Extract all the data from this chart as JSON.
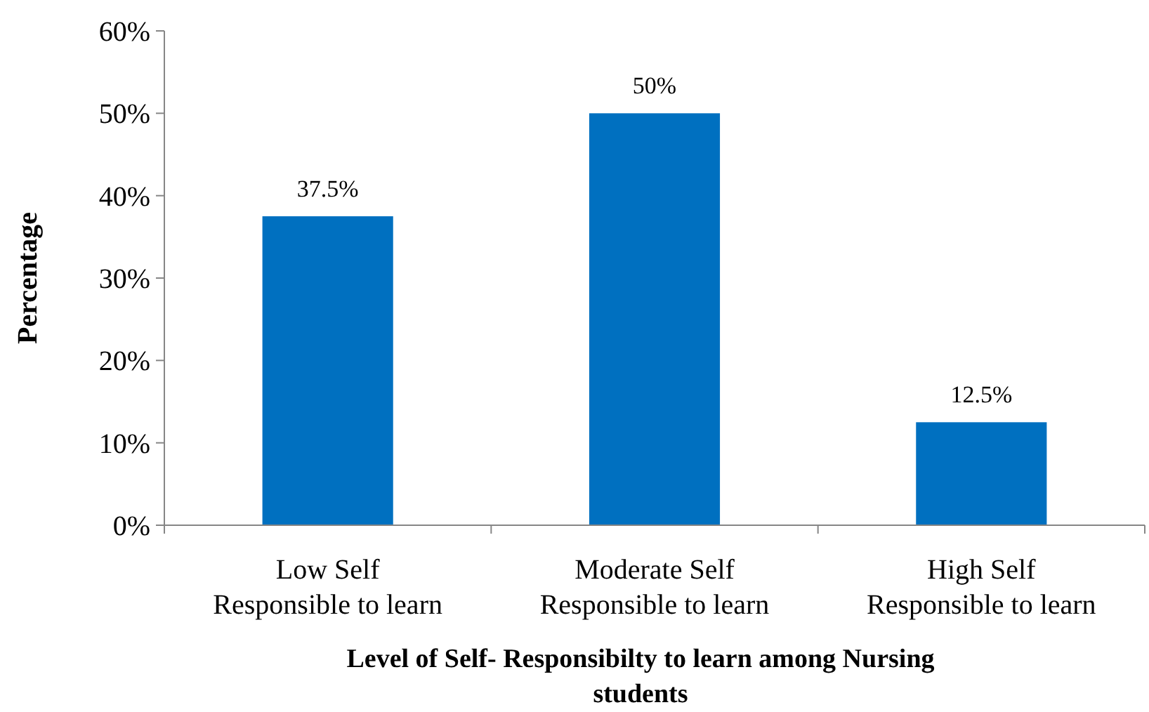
{
  "chart_data": {
    "type": "bar",
    "xlabel": "Level of Self- Responsibilty to learn among Nursing\nstudents",
    "ylabel": "Percentage",
    "categories": [
      "Low Self\nResponsible to learn",
      "Moderate Self\nResponsible to learn",
      "High Self\nResponsible to learn"
    ],
    "values": [
      37.5,
      50,
      12.5
    ],
    "value_labels": [
      "37.5%",
      "50%",
      "12.5%"
    ],
    "color": "#0070c0",
    "ylim": [
      0,
      60
    ],
    "yticks": [
      {
        "value": 0,
        "label": "0%"
      },
      {
        "value": 10,
        "label": "10%"
      },
      {
        "value": 20,
        "label": "20%"
      },
      {
        "value": 30,
        "label": "30%"
      },
      {
        "value": 40,
        "label": "40%"
      },
      {
        "value": 50,
        "label": "50%"
      },
      {
        "value": 60,
        "label": "60%"
      }
    ],
    "grid": false
  }
}
